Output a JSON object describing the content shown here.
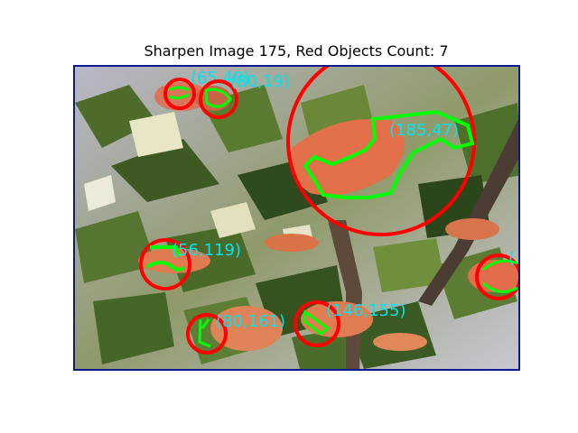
{
  "figure": {
    "title": "Sharpen Image 175, Red Objects Count: 7"
  },
  "detections": [
    {
      "id": 1,
      "label": "(65,40)"
    },
    {
      "id": 2,
      "label": "(80,19)"
    },
    {
      "id": 3,
      "label": "(185,47)"
    },
    {
      "id": 4,
      "label": "(56,119)"
    },
    {
      "id": 5,
      "label": "(146,155)"
    },
    {
      "id": 6,
      "label": "(80,161)"
    },
    {
      "id": 7,
      "label": "("
    }
  ],
  "colors": {
    "circle": "#ff0000",
    "contour": "#00ff00",
    "label": "#00e5ee",
    "frame": "#0b1a8c"
  }
}
